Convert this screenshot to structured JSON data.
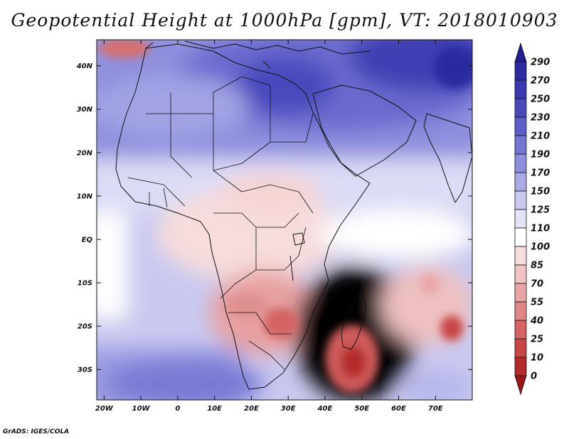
{
  "title": "Geopotential Height at 1000hPa [gpm], VT: 2018010903",
  "credit": "GrADS: IGES/COLA",
  "map": {
    "lon_range": [
      -22,
      80
    ],
    "lat_range": [
      -37,
      46
    ],
    "lat_labels": [
      "40N",
      "30N",
      "20N",
      "10N",
      "EQ",
      "10S",
      "20S",
      "30S"
    ],
    "lon_labels": [
      "20W",
      "10W",
      "0",
      "10E",
      "20E",
      "30E",
      "40E",
      "50E",
      "60E",
      "70E"
    ]
  },
  "colorbar": {
    "labels": [
      "290",
      "270",
      "250",
      "230",
      "210",
      "190",
      "170",
      "150",
      "125",
      "110",
      "100",
      "85",
      "70",
      "55",
      "40",
      "25",
      "10",
      "0"
    ],
    "colors": [
      "#1e1e90",
      "#2b2ba0",
      "#3939b0",
      "#4a4abd",
      "#5e5ec9",
      "#7575d4",
      "#8e8ede",
      "#aaaae8",
      "#c8c8f1",
      "#e4e4f8",
      "#ffffff",
      "#f8dede",
      "#f1c4c4",
      "#e9a5a5",
      "#df8585",
      "#d46464",
      "#c84545",
      "#b52a2a",
      "#981818"
    ]
  }
}
